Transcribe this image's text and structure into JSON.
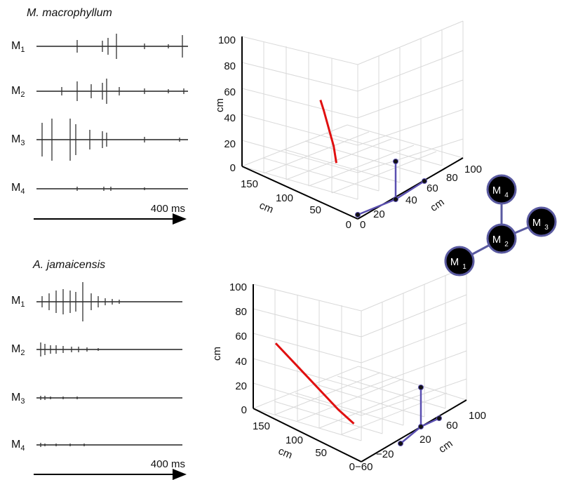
{
  "panels": [
    {
      "species": "M. macrophyllum",
      "channels": [
        "M",
        "M",
        "M",
        "M"
      ],
      "channel_subs": [
        "1",
        "2",
        "3",
        "4"
      ],
      "scale_label": "400 ms"
    },
    {
      "species": "A. jamaicensis",
      "channels": [
        "M",
        "M",
        "M",
        "M"
      ],
      "channel_subs": [
        "1",
        "2",
        "3",
        "4"
      ],
      "scale_label": "400 ms"
    }
  ],
  "colors": {
    "trajectory": "#e01010",
    "microphone_lines": "#5a4fb0",
    "node_fill": "#000000",
    "node_ring": "#5a5aa0"
  },
  "array_diagram": {
    "nodes": [
      {
        "label": "M",
        "sub": "4"
      },
      {
        "label": "M",
        "sub": "3"
      },
      {
        "label": "M",
        "sub": "2"
      },
      {
        "label": "M",
        "sub": "1"
      }
    ]
  },
  "chart_data": [
    {
      "type": "line",
      "title": "",
      "axes": {
        "z": {
          "label": "cm",
          "range": [
            0,
            100
          ],
          "ticks": [
            "0",
            "20",
            "40",
            "60",
            "80",
            "100"
          ]
        },
        "x": {
          "label": "cm",
          "range": [
            0,
            175
          ],
          "ticks": [
            "0",
            "50",
            "100",
            "150"
          ]
        },
        "y": {
          "label": "cm",
          "range": [
            0,
            100
          ],
          "ticks": [
            "0",
            "20",
            "40",
            "60",
            "80",
            "100"
          ]
        }
      },
      "grid": true,
      "series": [
        {
          "points_xyz": [
            [
              120,
              40,
              45
            ],
            [
              115,
              40,
              38
            ],
            [
              110,
              40,
              30
            ],
            [
              105,
              40,
              22
            ],
            [
              100,
              40,
              14
            ],
            [
              98,
              40,
              8
            ],
            [
              96,
              40,
              2
            ]
          ]
        }
      ]
    },
    {
      "type": "line",
      "title": "",
      "axes": {
        "z": {
          "label": "cm",
          "range": [
            0,
            100
          ],
          "ticks": [
            "0",
            "20",
            "40",
            "60",
            "80",
            "100"
          ]
        },
        "x": {
          "label": "cm",
          "range": [
            0,
            175
          ],
          "ticks": [
            "0",
            "50",
            "100",
            "150"
          ]
        },
        "y": {
          "label": "cm",
          "range": [
            -60,
            100
          ],
          "ticks": [
            "−60",
            "−20",
            "20",
            "60",
            "100"
          ]
        }
      },
      "grid": true,
      "series": [
        {
          "points_xyz": [
            [
              160,
              -40,
              50
            ],
            [
              140,
              -35,
              40
            ],
            [
              120,
              -30,
              30
            ],
            [
              100,
              -25,
              20
            ],
            [
              80,
              -20,
              10
            ],
            [
              60,
              -15,
              2
            ]
          ]
        }
      ]
    }
  ]
}
